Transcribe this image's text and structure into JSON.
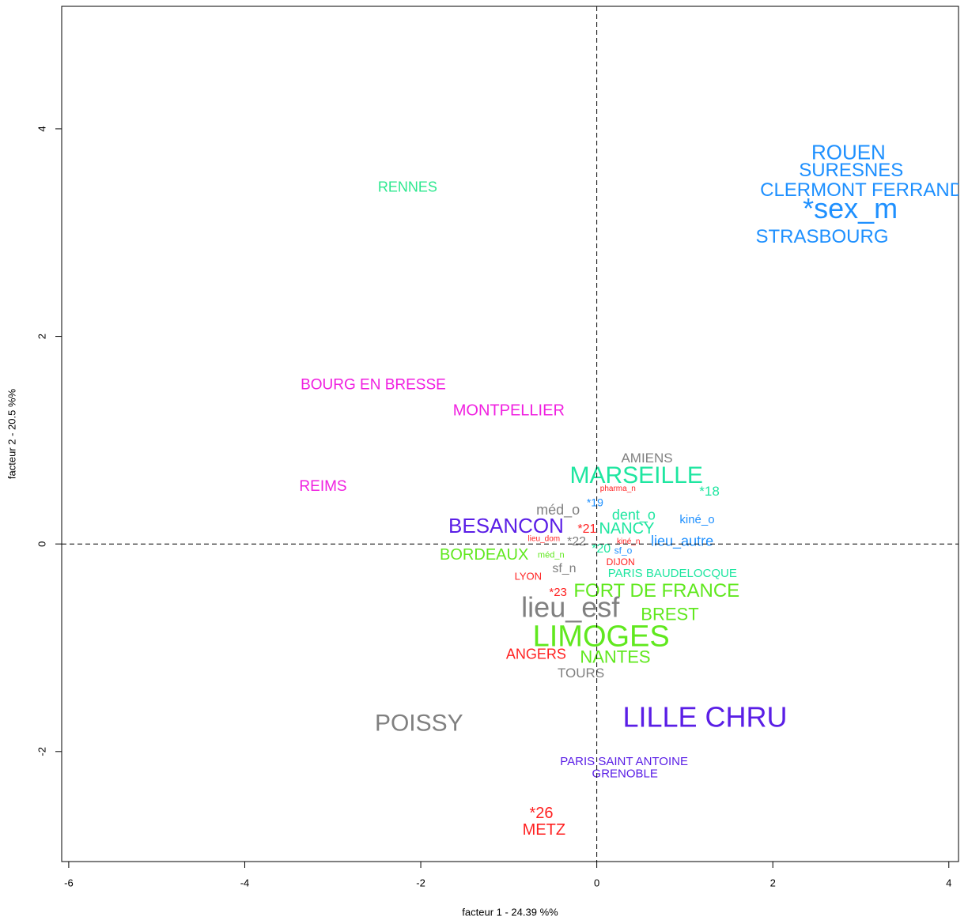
{
  "chart_data": {
    "type": "scatter",
    "xlabel": "facteur  1  - 24.39 %%",
    "ylabel": "facteur  2  - 20.5 %%",
    "xlim": [
      -6.08,
      4.11
    ],
    "ylim": [
      -3.06,
      5.18
    ],
    "xticks": [
      -6,
      -4,
      -2,
      0,
      2,
      4
    ],
    "yticks": [
      -2,
      0,
      2,
      4
    ],
    "zero_lines": true,
    "points": [
      {
        "label": "RENNES",
        "x": -2.15,
        "y": 3.43,
        "color": "#2ee88f",
        "size": 18
      },
      {
        "label": "ROUEN",
        "x": 2.86,
        "y": 3.76,
        "color": "#1e90ff",
        "size": 26
      },
      {
        "label": "SURESNES",
        "x": 2.89,
        "y": 3.59,
        "color": "#1e90ff",
        "size": 24
      },
      {
        "label": "CLERMONT FERRAND",
        "x": 3.01,
        "y": 3.4,
        "color": "#1e90ff",
        "size": 24
      },
      {
        "label": "*sex_m",
        "x": 2.88,
        "y": 3.21,
        "color": "#1e90ff",
        "size": 36
      },
      {
        "label": "STRASBOURG",
        "x": 2.56,
        "y": 2.95,
        "color": "#1e90ff",
        "size": 24
      },
      {
        "label": "BOURG EN BRESSE",
        "x": -2.54,
        "y": 1.53,
        "color": "#f020e0",
        "size": 19
      },
      {
        "label": "MONTPELLIER",
        "x": -1.0,
        "y": 1.28,
        "color": "#f020e0",
        "size": 20
      },
      {
        "label": "REIMS",
        "x": -3.11,
        "y": 0.55,
        "color": "#f020e0",
        "size": 19
      },
      {
        "label": "AMIENS",
        "x": 0.57,
        "y": 0.82,
        "color": "#808080",
        "size": 17
      },
      {
        "label": "MARSEILLE",
        "x": 0.45,
        "y": 0.65,
        "color": "#1ee6a0",
        "size": 30
      },
      {
        "label": "pharma_n",
        "x": 0.24,
        "y": 0.53,
        "color": "#ff2020",
        "size": 10
      },
      {
        "label": "*18",
        "x": 1.28,
        "y": 0.5,
        "color": "#1ee6a0",
        "size": 17
      },
      {
        "label": "*19",
        "x": -0.02,
        "y": 0.39,
        "color": "#1e90ff",
        "size": 14
      },
      {
        "label": "méd_o",
        "x": -0.44,
        "y": 0.32,
        "color": "#808080",
        "size": 18
      },
      {
        "label": "dent_o",
        "x": 0.42,
        "y": 0.27,
        "color": "#1ee6a0",
        "size": 18
      },
      {
        "label": "kiné_o",
        "x": 1.14,
        "y": 0.23,
        "color": "#1e90ff",
        "size": 15
      },
      {
        "label": "BESANCON",
        "x": -1.03,
        "y": 0.16,
        "color": "#5a1ee6",
        "size": 26
      },
      {
        "label": "*21",
        "x": -0.11,
        "y": 0.14,
        "color": "#ff2020",
        "size": 16
      },
      {
        "label": "NANCY",
        "x": 0.34,
        "y": 0.14,
        "color": "#1ee6a0",
        "size": 20
      },
      {
        "label": "lieu_dom",
        "x": -0.6,
        "y": 0.05,
        "color": "#ff2020",
        "size": 10
      },
      {
        "label": "*22",
        "x": -0.23,
        "y": 0.02,
        "color": "#808080",
        "size": 16
      },
      {
        "label": "kiné_n",
        "x": 0.36,
        "y": 0.02,
        "color": "#ff2020",
        "size": 10
      },
      {
        "label": "lieu_autre",
        "x": 0.97,
        "y": 0.02,
        "color": "#1e90ff",
        "size": 18
      },
      {
        "label": "*20",
        "x": 0.05,
        "y": -0.05,
        "color": "#1ee6a0",
        "size": 16
      },
      {
        "label": "sf_o",
        "x": 0.3,
        "y": -0.07,
        "color": "#1e90ff",
        "size": 12
      },
      {
        "label": "BORDEAUX",
        "x": -1.28,
        "y": -0.11,
        "color": "#60e81e",
        "size": 20
      },
      {
        "label": "méd_n",
        "x": -0.52,
        "y": -0.11,
        "color": "#60e81e",
        "size": 11
      },
      {
        "label": "DIJON",
        "x": 0.27,
        "y": -0.18,
        "color": "#ff2020",
        "size": 12
      },
      {
        "label": "sf_n",
        "x": -0.37,
        "y": -0.24,
        "color": "#808080",
        "size": 16
      },
      {
        "label": "PARIS BAUDELOCQUE",
        "x": 0.86,
        "y": -0.29,
        "color": "#1ee6a0",
        "size": 15
      },
      {
        "label": "LYON",
        "x": -0.78,
        "y": -0.32,
        "color": "#ff2020",
        "size": 13
      },
      {
        "label": "*23",
        "x": -0.44,
        "y": -0.47,
        "color": "#ff2020",
        "size": 15
      },
      {
        "label": "FORT DE FRANCE",
        "x": 0.68,
        "y": -0.46,
        "color": "#60e81e",
        "size": 24
      },
      {
        "label": "lieu_esf",
        "x": -0.3,
        "y": -0.63,
        "color": "#808080",
        "size": 36
      },
      {
        "label": "BREST",
        "x": 0.83,
        "y": -0.69,
        "color": "#60e81e",
        "size": 22
      },
      {
        "label": "LIMOGES",
        "x": 0.05,
        "y": -0.91,
        "color": "#60e81e",
        "size": 38
      },
      {
        "label": "ANGERS",
        "x": -0.69,
        "y": -1.07,
        "color": "#ff2020",
        "size": 18
      },
      {
        "label": "NANTES",
        "x": 0.21,
        "y": -1.1,
        "color": "#60e81e",
        "size": 22
      },
      {
        "label": "TOURS",
        "x": -0.18,
        "y": -1.25,
        "color": "#808080",
        "size": 17
      },
      {
        "label": "POISSY",
        "x": -2.02,
        "y": -1.74,
        "color": "#808080",
        "size": 30
      },
      {
        "label": "LILLE CHRU",
        "x": 1.23,
        "y": -1.69,
        "color": "#5a1ee6",
        "size": 36
      },
      {
        "label": "PARIS SAINT ANTOINE",
        "x": 0.31,
        "y": -2.1,
        "color": "#5a1ee6",
        "size": 15
      },
      {
        "label": "GRENOBLE",
        "x": 0.32,
        "y": -2.22,
        "color": "#5a1ee6",
        "size": 15
      },
      {
        "label": "*26",
        "x": -0.63,
        "y": -2.6,
        "color": "#ff2020",
        "size": 20
      },
      {
        "label": "METZ",
        "x": -0.6,
        "y": -2.76,
        "color": "#ff2020",
        "size": 20
      }
    ]
  }
}
